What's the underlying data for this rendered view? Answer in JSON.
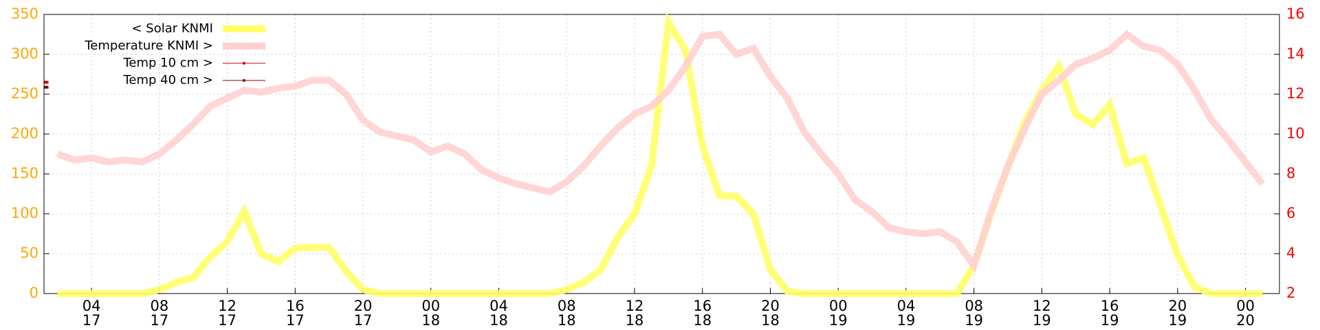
{
  "chart_data": {
    "type": "line",
    "xlim": [
      1.2,
      74
    ],
    "xticks": [
      {
        "value": 4,
        "label": [
          "04",
          "17"
        ]
      },
      {
        "value": 8,
        "label": [
          "08",
          "17"
        ]
      },
      {
        "value": 12,
        "label": [
          "12",
          "17"
        ]
      },
      {
        "value": 16,
        "label": [
          "16",
          "17"
        ]
      },
      {
        "value": 20,
        "label": [
          "20",
          "17"
        ]
      },
      {
        "value": 24,
        "label": [
          "00",
          "18"
        ]
      },
      {
        "value": 28,
        "label": [
          "04",
          "18"
        ]
      },
      {
        "value": 32,
        "label": [
          "08",
          "18"
        ]
      },
      {
        "value": 36,
        "label": [
          "12",
          "18"
        ]
      },
      {
        "value": 40,
        "label": [
          "16",
          "18"
        ]
      },
      {
        "value": 44,
        "label": [
          "20",
          "18"
        ]
      },
      {
        "value": 48,
        "label": [
          "00",
          "19"
        ]
      },
      {
        "value": 52,
        "label": [
          "04",
          "19"
        ]
      },
      {
        "value": 56,
        "label": [
          "08",
          "19"
        ]
      },
      {
        "value": 60,
        "label": [
          "12",
          "19"
        ]
      },
      {
        "value": 64,
        "label": [
          "16",
          "19"
        ]
      },
      {
        "value": 68,
        "label": [
          "20",
          "19"
        ]
      },
      {
        "value": 72,
        "label": [
          "00",
          "20"
        ]
      }
    ],
    "ylim": [
      0,
      350
    ],
    "yticks": [
      0,
      50,
      100,
      150,
      200,
      250,
      300,
      350
    ],
    "y_color": "#ffa500",
    "y2lim": [
      2,
      16
    ],
    "y2ticks": [
      2,
      4,
      6,
      8,
      10,
      12,
      14,
      16
    ],
    "y2_color": "#ff0000",
    "grid": true,
    "series": [
      {
        "name": "< Solar KNMI",
        "color": "#ffff66",
        "width": 10,
        "axis": "y",
        "x": [
          2,
          3,
          4,
          5,
          6,
          7,
          8,
          9,
          10,
          11,
          12,
          13,
          14,
          15,
          16,
          17,
          18,
          19,
          20,
          21,
          22,
          23,
          24,
          25,
          26,
          27,
          28,
          29,
          30,
          31,
          32,
          33,
          34,
          35,
          36,
          37,
          38,
          39,
          40,
          41,
          42,
          43,
          44,
          45,
          46,
          47,
          48,
          49,
          50,
          51,
          52,
          53,
          54,
          55,
          56,
          57,
          58,
          59,
          60,
          61,
          62,
          63,
          64,
          65,
          66,
          67,
          68,
          69,
          70,
          71,
          72,
          73
        ],
        "values": [
          0,
          0,
          0,
          0,
          0,
          0,
          5,
          14,
          20,
          46,
          65,
          103,
          50,
          40,
          57,
          58,
          58,
          28,
          5,
          0,
          0,
          0,
          0,
          0,
          0,
          0,
          0,
          0,
          0,
          0,
          5,
          14,
          30,
          70,
          100,
          160,
          340,
          305,
          185,
          123,
          122,
          100,
          30,
          3,
          0,
          0,
          0,
          0,
          0,
          0,
          0,
          0,
          0,
          0,
          35,
          100,
          160,
          215,
          255,
          285,
          225,
          212,
          237,
          163,
          170,
          110,
          48,
          8,
          0,
          0,
          0,
          0
        ]
      },
      {
        "name": "Temperature KNMI >",
        "color": "#ffd0d0",
        "width": 10,
        "axis": "y2",
        "x": [
          2,
          3,
          4,
          5,
          6,
          7,
          8,
          9,
          10,
          11,
          12,
          13,
          14,
          15,
          16,
          17,
          18,
          19,
          20,
          21,
          22,
          23,
          24,
          25,
          26,
          27,
          28,
          29,
          30,
          31,
          32,
          33,
          34,
          35,
          36,
          37,
          38,
          39,
          40,
          41,
          42,
          43,
          44,
          45,
          46,
          47,
          48,
          49,
          50,
          51,
          52,
          53,
          54,
          55,
          56,
          57,
          58,
          59,
          60,
          61,
          62,
          63,
          64,
          65,
          66,
          67,
          68,
          69,
          70,
          71,
          72,
          73
        ],
        "values": [
          9.0,
          8.7,
          8.8,
          8.6,
          8.7,
          8.6,
          9.0,
          9.7,
          10.5,
          11.4,
          11.8,
          12.2,
          12.1,
          12.3,
          12.4,
          12.7,
          12.7,
          12.0,
          10.7,
          10.1,
          9.9,
          9.7,
          9.1,
          9.4,
          9.0,
          8.2,
          7.8,
          7.5,
          7.3,
          7.1,
          7.6,
          8.4,
          9.4,
          10.3,
          11.0,
          11.4,
          12.2,
          13.4,
          14.9,
          15.0,
          14.0,
          14.3,
          12.9,
          11.8,
          10.1,
          9.0,
          8.0,
          6.7,
          6.1,
          5.3,
          5.1,
          5.0,
          5.1,
          4.6,
          3.4,
          6.1,
          8.4,
          10.3,
          12.0,
          12.7,
          13.5,
          13.8,
          14.2,
          15.0,
          14.4,
          14.2,
          13.5,
          12.2,
          10.7,
          9.7,
          8.6,
          7.5
        ]
      },
      {
        "name": "Temp 10 cm >",
        "color": "#cc0000",
        "width": 1,
        "axis": "y2",
        "x": [
          1.3
        ],
        "values": [
          12.6
        ]
      },
      {
        "name": "Temp 40 cm >",
        "color": "#880000",
        "width": 1,
        "axis": "y2",
        "x": [
          1.3
        ],
        "values": [
          12.35
        ]
      }
    ]
  }
}
